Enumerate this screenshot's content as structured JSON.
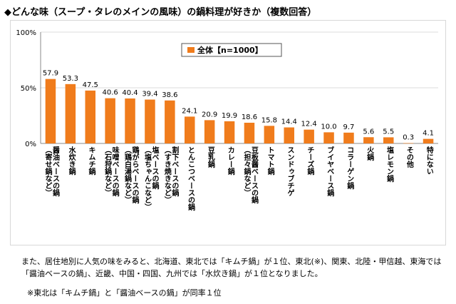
{
  "title": "◆どんな味（スープ・タレのメインの風味）の鍋料理が好きか（複数回答）",
  "chart_data": {
    "type": "bar",
    "legend": "全体【n=1000】",
    "legend_position": "top-center",
    "ylim": [
      0,
      100
    ],
    "yticks": [
      "0%",
      "50%",
      "100%"
    ],
    "yticks_values": [
      0,
      50,
      100
    ],
    "categories": [
      "醤油ベースの鍋\n（寄せ鍋など）",
      "水炊き鍋",
      "キムチ鍋",
      "味噌ベースの鍋\n（石狩鍋など）",
      "鶏がらベースの鍋\n（鶏白湯鍋など）",
      "塩ベースの鍋\n（塩ちゃんこなど）",
      "割下ベースの鍋\n（すき焼きなど）",
      "とんこつベースの鍋",
      "豆乳鍋",
      "カレー鍋",
      "豆板醤ベースの鍋\n（担々鍋など）",
      "トマト鍋",
      "スンドゥブチゲ",
      "チーズ鍋",
      "ブイヤベース鍋",
      "コラーゲン鍋",
      "火鍋",
      "塩レモン鍋",
      "その他",
      "特にない"
    ],
    "values": [
      57.9,
      53.3,
      47.5,
      40.6,
      40.4,
      39.4,
      38.6,
      24.1,
      20.9,
      19.9,
      18.6,
      15.8,
      14.4,
      12.4,
      10.0,
      9.7,
      5.6,
      5.5,
      0.3,
      4.1
    ],
    "value_labels": [
      "57.9",
      "53.3",
      "47.5",
      "40.6",
      "40.4",
      "39.4",
      "38.6",
      "24.1",
      "20.9",
      "19.9",
      "18.6",
      "15.8",
      "14.4",
      "12.4",
      "10.0",
      "9.7",
      "5.6",
      "5.5",
      "0.3",
      "4.1"
    ],
    "bar_color": "#f07c1c"
  },
  "notes": [
    "また、居住地別に人気の味をみると、北海道、東北では「キムチ鍋」が１位、東北(※)、関東、北陸・甲信越、東海では「醤油ベースの鍋」、近畿、中国・四国、九州では「水炊き鍋」が１位となりました。",
    "※東北は「キムチ鍋」と「醤油ベースの鍋」が同率１位"
  ]
}
